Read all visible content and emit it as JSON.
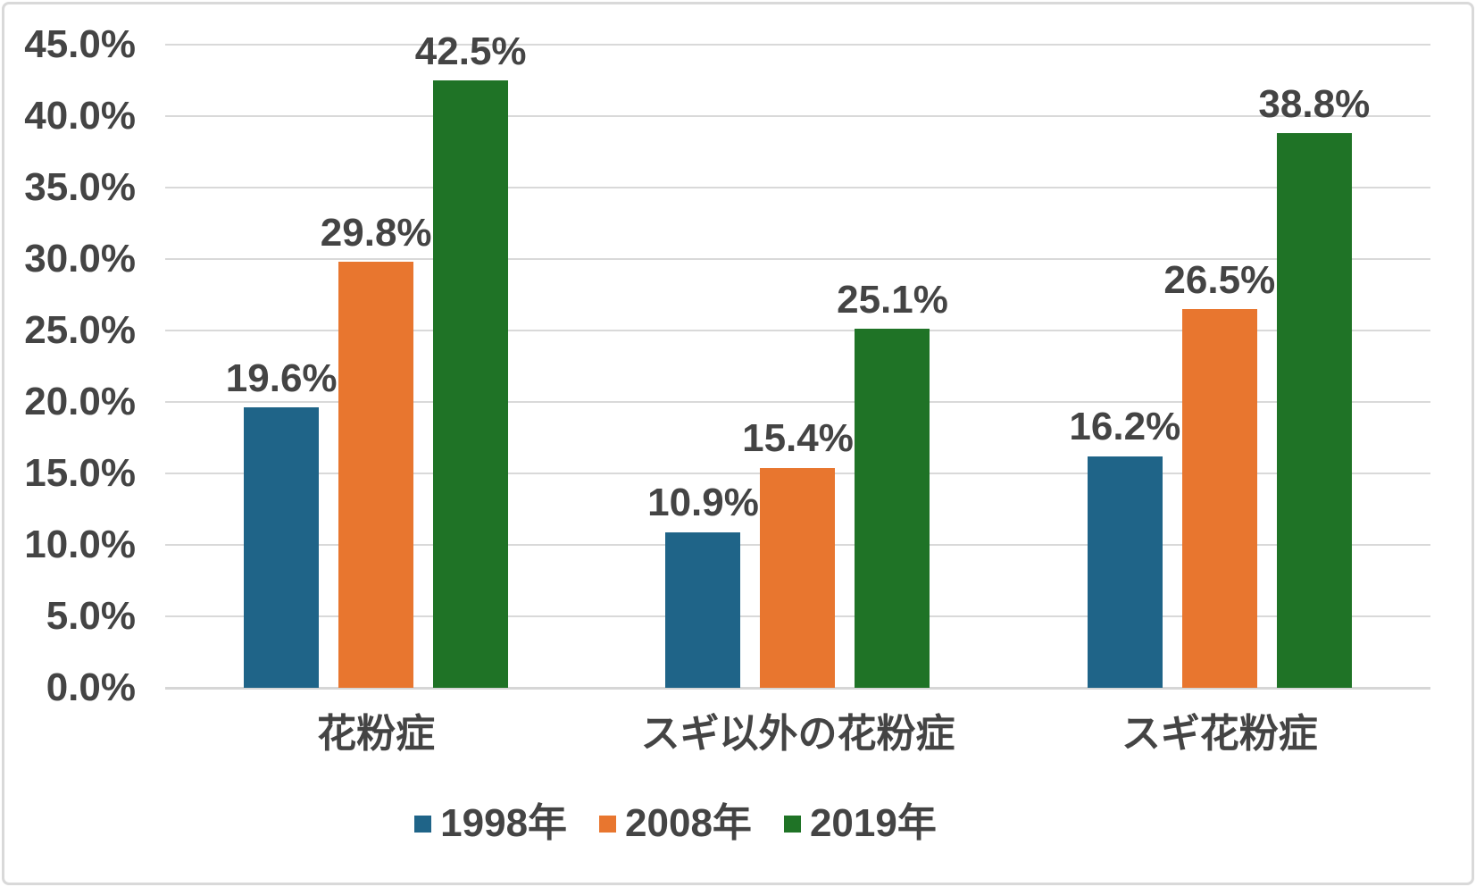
{
  "chart_data": {
    "type": "bar",
    "title": "",
    "categories": [
      "花粉症",
      "スギ以外の花粉症",
      "スギ花粉症"
    ],
    "series": [
      {
        "name": "1998年",
        "color": "#1F6488",
        "values": [
          19.6,
          10.9,
          16.2
        ]
      },
      {
        "name": "2008年",
        "color": "#E8762F",
        "values": [
          29.8,
          15.4,
          26.5
        ]
      },
      {
        "name": "2019年",
        "color": "#1F7326",
        "values": [
          42.5,
          25.1,
          38.8
        ]
      }
    ],
    "data_labels": [
      "19.6%",
      "29.8%",
      "42.5%",
      "10.9%",
      "15.4%",
      "25.1%",
      "16.2%",
      "26.5%",
      "38.8%"
    ],
    "y_axis": {
      "min": 0,
      "max": 45,
      "step": 5,
      "tick_labels": [
        "45.0%",
        "40.0%",
        "35.0%",
        "30.0%",
        "25.0%",
        "20.0%",
        "15.0%",
        "10.0%",
        "5.0%",
        "0.0%"
      ]
    },
    "grid": true,
    "legend_position": "bottom"
  },
  "style": {
    "background": "#FFFFFF",
    "border_color": "#D9D9D9",
    "grid_color": "#D9D9D9",
    "axis_line_color": "#D6D6D6",
    "text_color": "#444444"
  }
}
